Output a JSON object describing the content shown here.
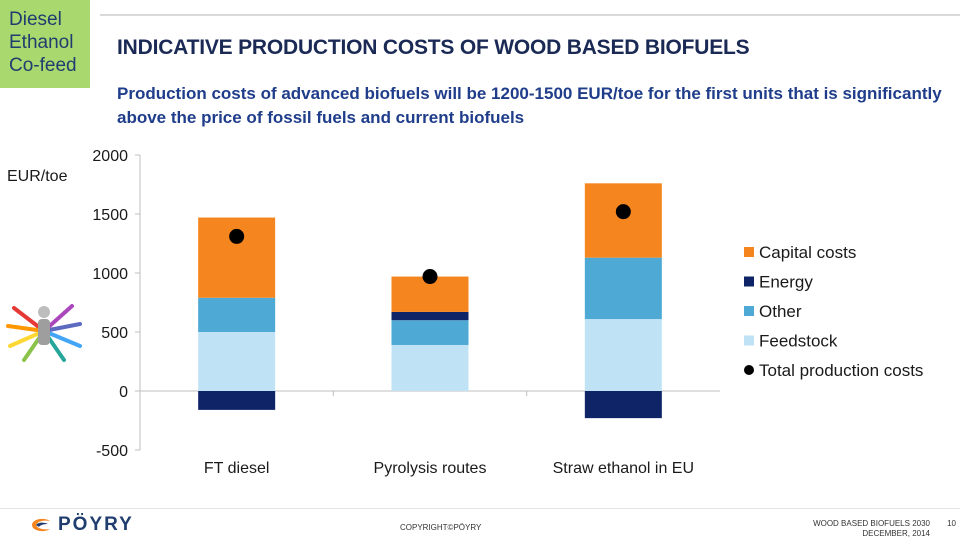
{
  "nav_tag": [
    "Diesel",
    "Ethanol",
    "Co-feed"
  ],
  "title": "INDICATIVE PRODUCTION COSTS OF WOOD BASED BIOFUELS",
  "subtitle": "Production costs of advanced biofuels will be 1200-1500 EUR/toe for the first units that is significantly above the price of fossil fuels and current biofuels",
  "chart_data": {
    "type": "bar",
    "stacked": true,
    "title": "",
    "xlabel": "",
    "ylabel": "EUR/toe",
    "ylim": [
      -500,
      2000
    ],
    "yticks": [
      2000,
      1500,
      1000,
      500,
      0,
      -500
    ],
    "categories": [
      "FT diesel",
      "Pyrolysis routes",
      "Straw ethanol in EU"
    ],
    "series": [
      {
        "name": "Feedstock",
        "color": "#bfe3f5",
        "values": [
          500,
          390,
          610
        ]
      },
      {
        "name": "Other",
        "color": "#4ea9d4",
        "values": [
          290,
          210,
          520
        ]
      },
      {
        "name": "Energy",
        "color": "#0e2466",
        "values": [
          -160,
          70,
          -230
        ]
      },
      {
        "name": "Capital costs",
        "color": "#f5861f",
        "values": [
          680,
          300,
          630
        ]
      }
    ],
    "totals": {
      "name": "Total production costs",
      "values": [
        1310,
        970,
        1520
      ]
    },
    "legend_order": [
      "Capital costs",
      "Energy",
      "Other",
      "Feedstock",
      "Total production costs"
    ],
    "legend_position": "right",
    "grid": false
  },
  "footer": {
    "logo": "PÖYRY",
    "copyright": "COPYRIGHT©PÖYRY",
    "doc_title": "WOOD BASED BIOFUELS 2030",
    "date": "DECEMBER, 2014",
    "page": "10"
  }
}
